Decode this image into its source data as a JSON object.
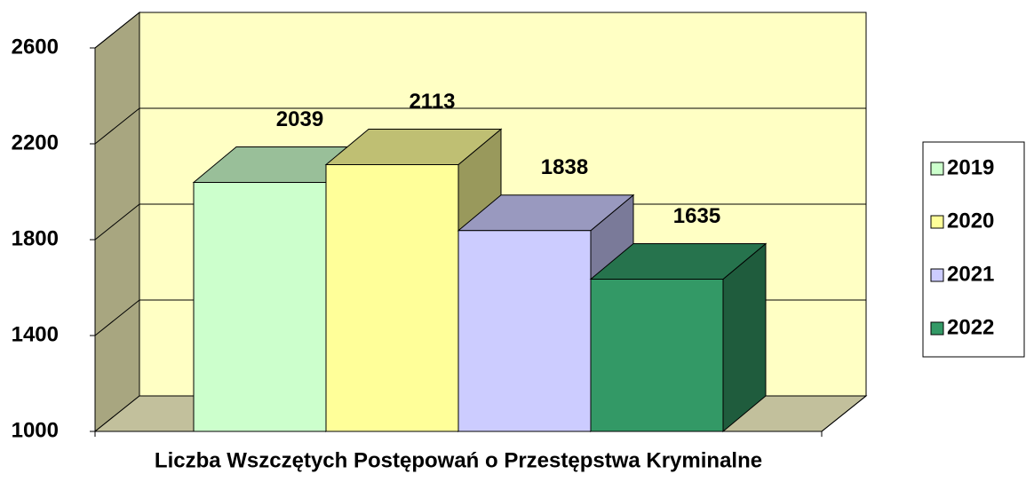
{
  "chart_data": {
    "type": "bar3d",
    "x_label": "Liczba Wszczętych Postępowań o Przestępstwa Kryminalne",
    "series": [
      {
        "name": "2019",
        "color": "#ccffcc",
        "values": [
          2039
        ]
      },
      {
        "name": "2020",
        "color": "#ffff99",
        "values": [
          2113
        ]
      },
      {
        "name": "2021",
        "color": "#ccccff",
        "values": [
          1838
        ]
      },
      {
        "name": "2022",
        "color": "#339966",
        "values": [
          1635
        ]
      }
    ],
    "ylim": [
      1000,
      2600
    ],
    "yticks": [
      1000,
      1400,
      1800,
      2200,
      2600
    ],
    "grid": true,
    "legend": "right"
  }
}
